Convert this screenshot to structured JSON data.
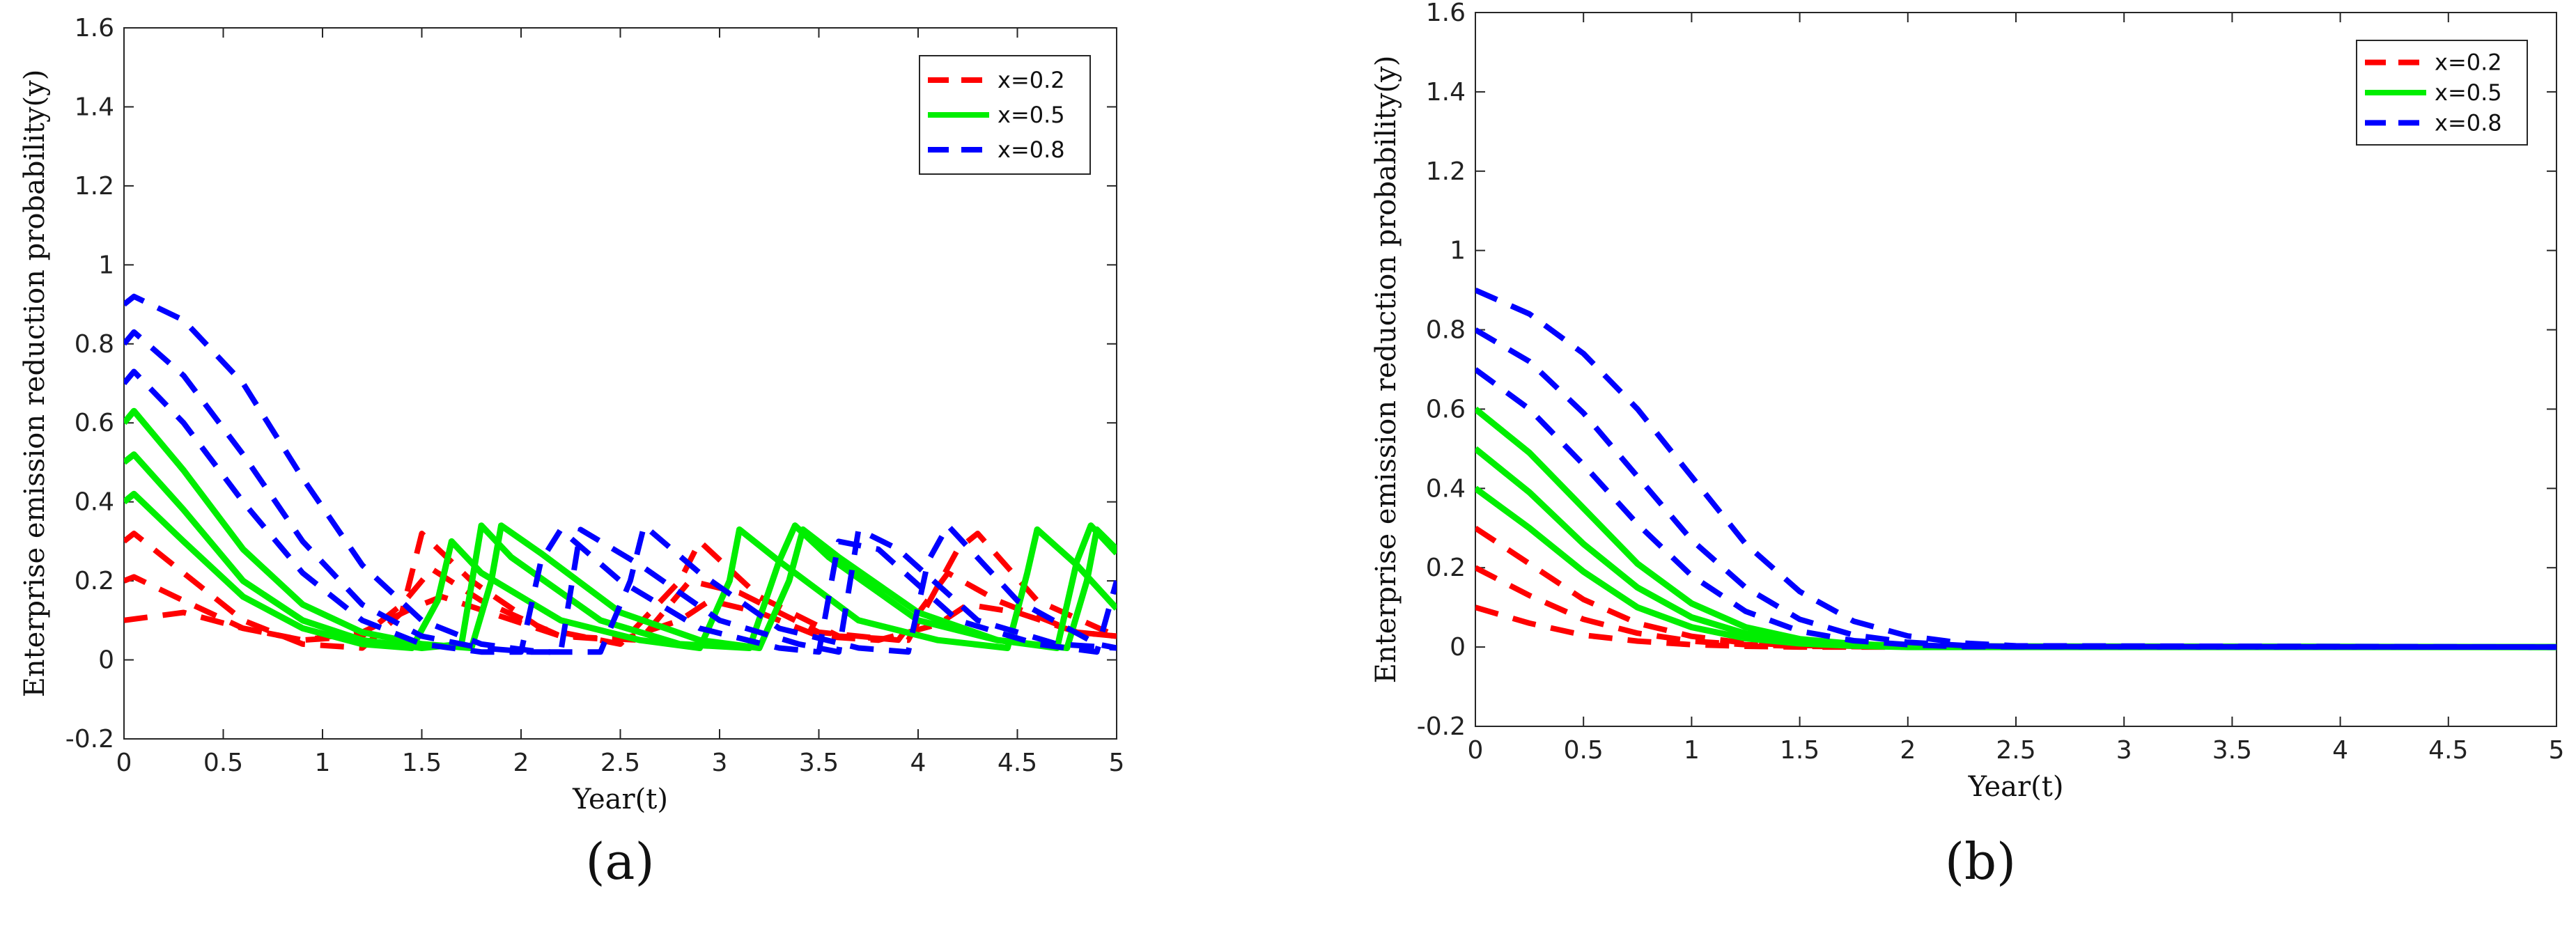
{
  "figure": {
    "panel_labels": [
      "(a)",
      "(b)"
    ]
  },
  "chart_data": [
    {
      "type": "line",
      "panel": "(a)",
      "xlabel": "Year(t)",
      "ylabel": "Enterprise emission reduction probability(y)",
      "xlim": [
        0,
        5
      ],
      "ylim": [
        -0.2,
        1.6
      ],
      "xticks": [
        "0",
        "0.5",
        "1",
        "1.5",
        "2",
        "2.5",
        "3",
        "3.5",
        "4",
        "4.5",
        "5"
      ],
      "yticks": [
        "-0.2",
        "0",
        "0.2",
        "0.4",
        "0.6",
        "0.8",
        "1",
        "1.2",
        "1.4",
        "1.6"
      ],
      "legend_position": "top-right",
      "legend": [
        {
          "label": "x=0.2",
          "color": "#ff0000",
          "style": "dashed"
        },
        {
          "label": "x=0.5",
          "color": "#00ee00",
          "style": "solid"
        },
        {
          "label": "x=0.8",
          "color": "#0000ff",
          "style": "dashed"
        }
      ],
      "series": [
        {
          "name": "x=0.2",
          "color": "#ff0000",
          "style": "dashed",
          "x": [
            0,
            0.3,
            0.6,
            0.9,
            1.2,
            1.45,
            1.6,
            1.9,
            2.2,
            2.5,
            2.8,
            2.95,
            3.2,
            3.5,
            3.8,
            4.1,
            4.25,
            4.5,
            4.8,
            5.0
          ],
          "y": [
            0.1,
            0.12,
            0.08,
            0.05,
            0.07,
            0.13,
            0.16,
            0.11,
            0.06,
            0.05,
            0.1,
            0.15,
            0.12,
            0.06,
            0.05,
            0.09,
            0.14,
            0.12,
            0.07,
            0.06
          ]
        },
        {
          "name": "x=0.2",
          "color": "#ff0000",
          "style": "dashed",
          "x": [
            0,
            0.05,
            0.3,
            0.6,
            0.9,
            1.2,
            1.4,
            1.55,
            1.8,
            2.2,
            2.6,
            2.85,
            3.1,
            3.5,
            3.9,
            4.15,
            4.4,
            4.8,
            5.0
          ],
          "y": [
            0.2,
            0.21,
            0.15,
            0.08,
            0.05,
            0.06,
            0.14,
            0.23,
            0.15,
            0.06,
            0.05,
            0.2,
            0.17,
            0.07,
            0.05,
            0.22,
            0.15,
            0.07,
            0.06
          ]
        },
        {
          "name": "x=0.2",
          "color": "#ff0000",
          "style": "dashed",
          "x": [
            0,
            0.05,
            0.3,
            0.6,
            0.9,
            1.2,
            1.4,
            1.5,
            1.75,
            2.1,
            2.5,
            2.8,
            2.9,
            3.2,
            3.6,
            3.95,
            4.2,
            4.3,
            4.6,
            5.0
          ],
          "y": [
            0.3,
            0.32,
            0.22,
            0.1,
            0.04,
            0.03,
            0.12,
            0.32,
            0.2,
            0.08,
            0.04,
            0.2,
            0.3,
            0.16,
            0.06,
            0.05,
            0.28,
            0.32,
            0.15,
            0.06
          ]
        },
        {
          "name": "x=0.5",
          "color": "#00ee00",
          "style": "solid",
          "x": [
            0,
            0.05,
            0.3,
            0.6,
            0.9,
            1.2,
            1.45,
            1.58,
            1.65,
            1.8,
            2.2,
            2.6,
            2.9,
            3.05,
            3.1,
            3.3,
            3.7,
            4.1,
            4.45,
            4.55,
            4.6,
            4.8,
            5.0
          ],
          "y": [
            0.4,
            0.42,
            0.3,
            0.16,
            0.08,
            0.04,
            0.03,
            0.15,
            0.3,
            0.22,
            0.1,
            0.05,
            0.03,
            0.2,
            0.33,
            0.25,
            0.1,
            0.05,
            0.03,
            0.22,
            0.33,
            0.24,
            0.13
          ]
        },
        {
          "name": "x=0.5",
          "color": "#00ee00",
          "style": "solid",
          "x": [
            0,
            0.05,
            0.3,
            0.6,
            0.9,
            1.2,
            1.5,
            1.7,
            1.8,
            1.95,
            2.4,
            2.8,
            3.15,
            3.3,
            3.38,
            3.55,
            4.0,
            4.4,
            4.7,
            4.8,
            4.87,
            5.0
          ],
          "y": [
            0.5,
            0.52,
            0.38,
            0.2,
            0.1,
            0.05,
            0.03,
            0.04,
            0.34,
            0.26,
            0.1,
            0.04,
            0.03,
            0.25,
            0.34,
            0.26,
            0.1,
            0.05,
            0.03,
            0.25,
            0.34,
            0.27
          ]
        },
        {
          "name": "x=0.5",
          "color": "#00ee00",
          "style": "solid",
          "x": [
            0,
            0.05,
            0.3,
            0.6,
            0.9,
            1.2,
            1.5,
            1.75,
            1.85,
            1.9,
            2.1,
            2.5,
            2.9,
            3.2,
            3.35,
            3.42,
            3.6,
            4.0,
            4.4,
            4.75,
            4.85,
            4.9,
            5.0
          ],
          "y": [
            0.6,
            0.63,
            0.48,
            0.28,
            0.14,
            0.07,
            0.04,
            0.03,
            0.2,
            0.34,
            0.27,
            0.12,
            0.05,
            0.03,
            0.2,
            0.33,
            0.26,
            0.12,
            0.05,
            0.03,
            0.2,
            0.33,
            0.28
          ]
        },
        {
          "name": "x=0.8",
          "color": "#0000ff",
          "style": "dashed",
          "x": [
            0,
            0.05,
            0.3,
            0.6,
            0.9,
            1.2,
            1.5,
            1.8,
            2.0,
            2.1,
            2.2,
            2.5,
            2.9,
            3.3,
            3.5,
            3.6,
            3.8,
            4.2,
            4.6,
            4.9,
            5.0
          ],
          "y": [
            0.7,
            0.73,
            0.6,
            0.4,
            0.22,
            0.1,
            0.04,
            0.02,
            0.02,
            0.25,
            0.33,
            0.2,
            0.08,
            0.03,
            0.02,
            0.3,
            0.28,
            0.1,
            0.04,
            0.02,
            0.2
          ]
        },
        {
          "name": "x=0.8",
          "color": "#0000ff",
          "style": "dashed",
          "x": [
            0,
            0.05,
            0.3,
            0.6,
            0.9,
            1.2,
            1.5,
            1.8,
            2.05,
            2.2,
            2.3,
            2.6,
            3.0,
            3.4,
            3.6,
            3.7,
            3.9,
            4.3,
            4.7,
            5.0
          ],
          "y": [
            0.8,
            0.83,
            0.72,
            0.52,
            0.3,
            0.14,
            0.06,
            0.03,
            0.02,
            0.02,
            0.33,
            0.24,
            0.1,
            0.04,
            0.02,
            0.33,
            0.28,
            0.1,
            0.04,
            0.03
          ]
        },
        {
          "name": "x=0.8",
          "color": "#0000ff",
          "style": "dashed",
          "x": [
            0,
            0.05,
            0.3,
            0.6,
            0.9,
            1.2,
            1.5,
            1.8,
            2.1,
            2.4,
            2.55,
            2.62,
            2.9,
            3.3,
            3.7,
            3.95,
            4.05,
            4.15,
            4.5,
            4.9,
            5.0
          ],
          "y": [
            0.9,
            0.92,
            0.86,
            0.7,
            0.46,
            0.24,
            0.1,
            0.04,
            0.02,
            0.02,
            0.2,
            0.34,
            0.22,
            0.08,
            0.03,
            0.02,
            0.25,
            0.34,
            0.15,
            0.04,
            0.03
          ]
        }
      ]
    },
    {
      "type": "line",
      "panel": "(b)",
      "xlabel": "Year(t)",
      "ylabel": "Enterprise emission reduction probability(y)",
      "xlim": [
        0,
        5
      ],
      "ylim": [
        -0.2,
        1.6
      ],
      "xticks": [
        "0",
        "0.5",
        "1",
        "1.5",
        "2",
        "2.5",
        "3",
        "3.5",
        "4",
        "4.5",
        "5"
      ],
      "yticks": [
        "-0.2",
        "0",
        "0.2",
        "0.4",
        "0.6",
        "0.8",
        "1",
        "1.2",
        "1.4",
        "1.6"
      ],
      "legend_position": "top-right",
      "legend": [
        {
          "label": "x=0.2",
          "color": "#ff0000",
          "style": "dashed"
        },
        {
          "label": "x=0.5",
          "color": "#00ee00",
          "style": "solid"
        },
        {
          "label": "x=0.8",
          "color": "#0000ff",
          "style": "dashed"
        }
      ],
      "series": [
        {
          "name": "x=0.2",
          "color": "#ff0000",
          "style": "dashed",
          "x": [
            0,
            0.25,
            0.5,
            0.75,
            1.0,
            1.25,
            1.5,
            2.0,
            5.0
          ],
          "y": [
            0.1,
            0.06,
            0.03,
            0.015,
            0.006,
            0.002,
            0.0,
            0.0,
            0.0
          ]
        },
        {
          "name": "x=0.2",
          "color": "#ff0000",
          "style": "dashed",
          "x": [
            0,
            0.25,
            0.5,
            0.75,
            1.0,
            1.25,
            1.5,
            2.0,
            5.0
          ],
          "y": [
            0.2,
            0.13,
            0.07,
            0.035,
            0.015,
            0.006,
            0.002,
            0.0,
            0.0
          ]
        },
        {
          "name": "x=0.2",
          "color": "#ff0000",
          "style": "dashed",
          "x": [
            0,
            0.25,
            0.5,
            0.75,
            1.0,
            1.25,
            1.5,
            2.0,
            5.0
          ],
          "y": [
            0.3,
            0.21,
            0.12,
            0.06,
            0.027,
            0.01,
            0.004,
            0.0,
            0.0
          ]
        },
        {
          "name": "x=0.5",
          "color": "#00ee00",
          "style": "solid",
          "x": [
            0,
            0.25,
            0.5,
            0.75,
            1.0,
            1.25,
            1.5,
            1.75,
            2.0,
            5.0
          ],
          "y": [
            0.4,
            0.3,
            0.19,
            0.1,
            0.05,
            0.022,
            0.009,
            0.003,
            0.0,
            0.0
          ]
        },
        {
          "name": "x=0.5",
          "color": "#00ee00",
          "style": "solid",
          "x": [
            0,
            0.25,
            0.5,
            0.75,
            1.0,
            1.25,
            1.5,
            1.75,
            2.0,
            5.0
          ],
          "y": [
            0.5,
            0.39,
            0.26,
            0.15,
            0.075,
            0.034,
            0.014,
            0.005,
            0.001,
            0.0
          ]
        },
        {
          "name": "x=0.5",
          "color": "#00ee00",
          "style": "solid",
          "x": [
            0,
            0.25,
            0.5,
            0.75,
            1.0,
            1.25,
            1.5,
            1.75,
            2.0,
            5.0
          ],
          "y": [
            0.6,
            0.49,
            0.35,
            0.21,
            0.11,
            0.05,
            0.02,
            0.008,
            0.002,
            0.0
          ]
        },
        {
          "name": "x=0.8",
          "color": "#0000ff",
          "style": "dashed",
          "x": [
            0,
            0.25,
            0.5,
            0.75,
            1.0,
            1.25,
            1.5,
            1.75,
            2.0,
            2.25,
            5.0
          ],
          "y": [
            0.7,
            0.6,
            0.46,
            0.31,
            0.18,
            0.09,
            0.04,
            0.016,
            0.006,
            0.001,
            0.0
          ]
        },
        {
          "name": "x=0.8",
          "color": "#0000ff",
          "style": "dashed",
          "x": [
            0,
            0.25,
            0.5,
            0.75,
            1.0,
            1.25,
            1.5,
            1.75,
            2.0,
            2.25,
            2.5,
            5.0
          ],
          "y": [
            0.8,
            0.72,
            0.59,
            0.43,
            0.27,
            0.15,
            0.07,
            0.03,
            0.012,
            0.004,
            0.001,
            0.0
          ]
        },
        {
          "name": "x=0.8",
          "color": "#0000ff",
          "style": "dashed",
          "x": [
            0,
            0.25,
            0.5,
            0.75,
            1.0,
            1.25,
            1.5,
            1.75,
            2.0,
            2.25,
            2.5,
            5.0
          ],
          "y": [
            0.9,
            0.84,
            0.74,
            0.6,
            0.43,
            0.26,
            0.14,
            0.065,
            0.028,
            0.01,
            0.003,
            0.0
          ]
        }
      ]
    }
  ]
}
